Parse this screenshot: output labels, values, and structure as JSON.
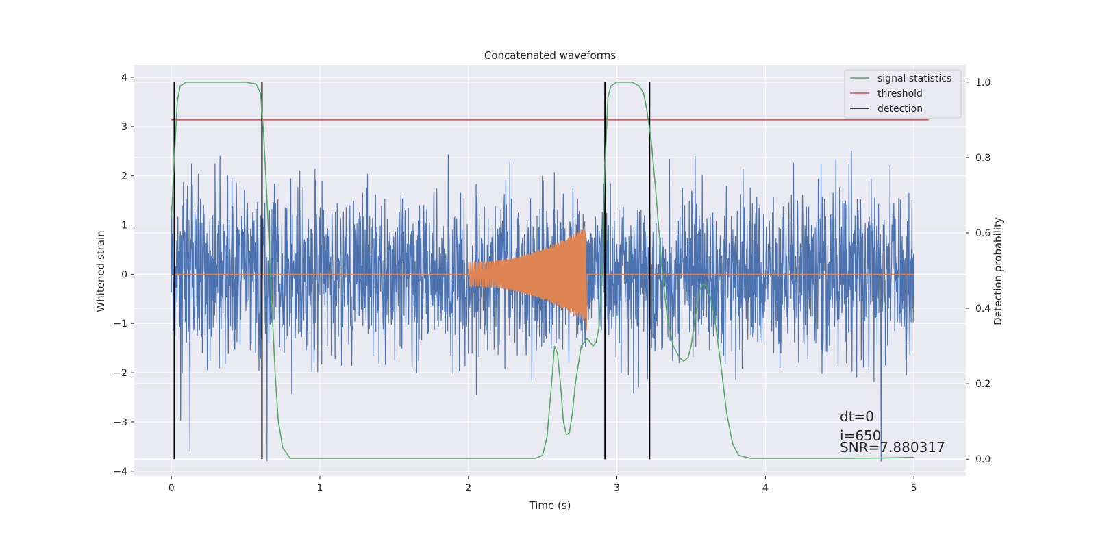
{
  "chart_data": {
    "type": "line",
    "title": "Concatenated waveforms",
    "xlabel": "Time (s)",
    "ylabel": "Whitened strain",
    "y2label": "Detection probability",
    "xlim": [
      -0.25,
      5.35
    ],
    "ylim": [
      -4.1,
      4.25
    ],
    "y2lim": [
      -0.045,
      1.045
    ],
    "xticks": [
      0,
      1,
      2,
      3,
      4,
      5
    ],
    "yticks": [
      -4,
      -3,
      -2,
      -1,
      0,
      1,
      2,
      3,
      4
    ],
    "y2ticks": [
      0.0,
      0.2,
      0.4,
      0.6,
      0.8,
      1.0
    ],
    "xtick_labels": [
      "0",
      "1",
      "2",
      "3",
      "4",
      "5"
    ],
    "ytick_labels": [
      "−4",
      "−3",
      "−2",
      "−1",
      "0",
      "1",
      "2",
      "3",
      "4"
    ],
    "y2tick_labels": [
      "0.0",
      "0.2",
      "0.4",
      "0.6",
      "0.8",
      "1.0"
    ],
    "grid": true,
    "legend": {
      "position": "top-right",
      "entries": [
        {
          "label": "signal statistics",
          "color": "#55a868"
        },
        {
          "label": "threshold",
          "color": "#c44e52"
        },
        {
          "label": "detection",
          "color": "#000000"
        }
      ]
    },
    "colors": {
      "strain": "#4c72b0",
      "template": "#dd8452",
      "signal_statistics": "#55a868",
      "threshold": "#c44e52",
      "detection": "#000000",
      "background": "#eaeaf2"
    },
    "strain_noise": {
      "x_range": [
        0,
        5
      ],
      "typical_amplitude": 0.9,
      "max_abs": 3.8
    },
    "template_chirp": {
      "x_start": 2.0,
      "x_end": 2.8,
      "start_amplitude": 0.25,
      "end_amplitude": 1.0
    },
    "threshold_value": 0.9,
    "threshold_x_range": [
      0,
      5.1
    ],
    "detections_x": [
      0.02,
      0.61,
      2.92,
      3.22
    ],
    "signal_statistics": {
      "x": [
        0.0,
        0.02,
        0.04,
        0.06,
        0.1,
        0.2,
        0.5,
        0.57,
        0.6,
        0.62,
        0.64,
        0.66,
        0.68,
        0.7,
        0.72,
        0.75,
        0.8,
        1.5,
        2.45,
        2.5,
        2.53,
        2.56,
        2.58,
        2.6,
        2.62,
        2.64,
        2.66,
        2.68,
        2.7,
        2.72,
        2.76,
        2.8,
        2.84,
        2.86,
        2.88,
        2.9,
        2.92,
        2.94,
        2.96,
        3.0,
        3.1,
        3.15,
        3.18,
        3.2,
        3.23,
        3.26,
        3.3,
        3.34,
        3.38,
        3.42,
        3.45,
        3.48,
        3.5,
        3.53,
        3.56,
        3.58,
        3.6,
        3.63,
        3.66,
        3.7,
        3.74,
        3.78,
        3.82,
        3.9,
        4.5,
        4.8,
        5.0
      ],
      "y": [
        0.64,
        0.8,
        0.95,
        0.99,
        1.0,
        1.0,
        1.0,
        0.995,
        0.97,
        0.87,
        0.72,
        0.55,
        0.38,
        0.22,
        0.1,
        0.03,
        0.002,
        0.002,
        0.002,
        0.01,
        0.06,
        0.2,
        0.3,
        0.28,
        0.2,
        0.1,
        0.065,
        0.07,
        0.12,
        0.2,
        0.3,
        0.32,
        0.3,
        0.31,
        0.35,
        0.5,
        0.78,
        0.96,
        0.99,
        1.0,
        1.0,
        0.99,
        0.97,
        0.93,
        0.85,
        0.72,
        0.52,
        0.37,
        0.3,
        0.27,
        0.26,
        0.27,
        0.3,
        0.38,
        0.45,
        0.465,
        0.46,
        0.43,
        0.37,
        0.25,
        0.12,
        0.04,
        0.01,
        0.002,
        0.002,
        0.003,
        0.005
      ]
    },
    "annotations": [
      "dt=0",
      "i=650",
      "SNR=7.880317"
    ]
  }
}
